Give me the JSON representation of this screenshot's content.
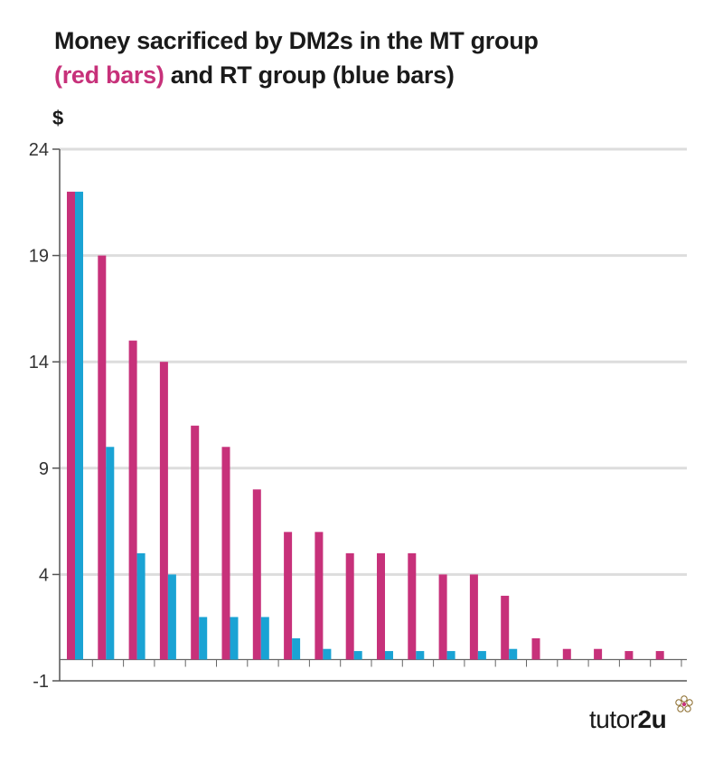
{
  "title": {
    "line1": "Money sacrificed by DM2s in the MT group",
    "line2_highlight": "(red bars)",
    "line2_rest": " and RT group (blue bars)"
  },
  "unit_label": "$",
  "brand": {
    "text": "tutor",
    "bold": "2u"
  },
  "colors": {
    "mt": "#c7317a",
    "rt": "#1aa3d4",
    "grid": "#dddddd",
    "axis": "#555555"
  },
  "chart_data": {
    "type": "bar",
    "title": "Money sacrificed by DM2s in the MT group (red bars) and RT group (blue bars)",
    "ylabel": "$",
    "xlabel": "",
    "ylim": [
      -1,
      24
    ],
    "yticks": [
      24,
      19,
      14,
      9,
      4,
      -1
    ],
    "grid": true,
    "categories": [
      "",
      "",
      "",
      "",
      "",
      "",
      "",
      "",
      "",
      "",
      "",
      "",
      "",
      "",
      "",
      "",
      "",
      "",
      "",
      ""
    ],
    "series": [
      {
        "name": "MT group (red bars)",
        "values": [
          22,
          19,
          15,
          14,
          11,
          10,
          8,
          6,
          6,
          5,
          5,
          5,
          4,
          4,
          3,
          1,
          0.5,
          0.5,
          0.4,
          0.4
        ]
      },
      {
        "name": "RT group (blue bars)",
        "values": [
          22,
          10,
          5,
          4,
          2,
          2,
          2,
          1,
          0.5,
          0.4,
          0.4,
          0.4,
          0.4,
          0.4,
          0.5,
          null,
          null,
          null,
          null,
          null
        ]
      }
    ]
  }
}
